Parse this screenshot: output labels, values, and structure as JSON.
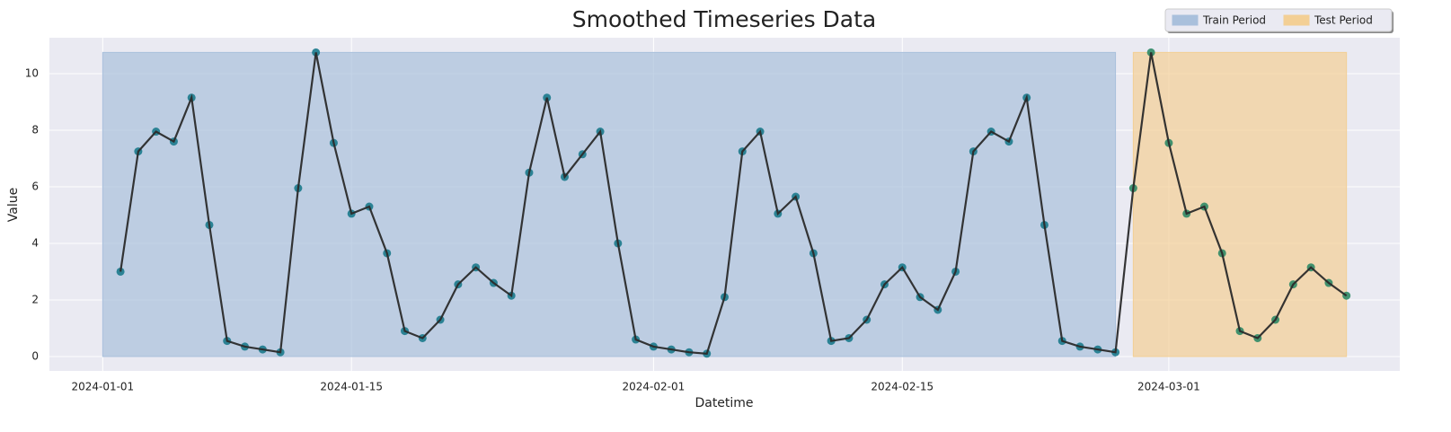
{
  "chart_data": {
    "type": "line",
    "title": "Smoothed Timeseries Data",
    "x_label": "Datetime",
    "y_label": "Value",
    "x": [
      "2024-01-02",
      "2024-01-03",
      "2024-01-04",
      "2024-01-05",
      "2024-01-06",
      "2024-01-07",
      "2024-01-08",
      "2024-01-09",
      "2024-01-10",
      "2024-01-11",
      "2024-01-12",
      "2024-01-13",
      "2024-01-14",
      "2024-01-15",
      "2024-01-16",
      "2024-01-17",
      "2024-01-18",
      "2024-01-19",
      "2024-01-20",
      "2024-01-21",
      "2024-01-22",
      "2024-01-23",
      "2024-01-24",
      "2024-01-25",
      "2024-01-26",
      "2024-01-27",
      "2024-01-28",
      "2024-01-29",
      "2024-01-30",
      "2024-01-31",
      "2024-02-01",
      "2024-02-02",
      "2024-02-03",
      "2024-02-04",
      "2024-02-05",
      "2024-02-06",
      "2024-02-07",
      "2024-02-08",
      "2024-02-09",
      "2024-02-10",
      "2024-02-11",
      "2024-02-12",
      "2024-02-13",
      "2024-02-14",
      "2024-02-15",
      "2024-02-16",
      "2024-02-17",
      "2024-02-18",
      "2024-02-19",
      "2024-02-20",
      "2024-02-21",
      "2024-02-22",
      "2024-02-23",
      "2024-02-24",
      "2024-02-25",
      "2024-02-26",
      "2024-02-27",
      "2024-02-28",
      "2024-02-29",
      "2024-03-01",
      "2024-03-02",
      "2024-03-03",
      "2024-03-04",
      "2024-03-05",
      "2024-03-06",
      "2024-03-07",
      "2024-03-08",
      "2024-03-09",
      "2024-03-10",
      "2024-03-11"
    ],
    "values": [
      3.0,
      7.25,
      7.95,
      7.6,
      9.15,
      4.65,
      0.55,
      0.35,
      0.25,
      0.15,
      5.95,
      10.75,
      7.55,
      5.05,
      5.3,
      3.65,
      0.9,
      0.65,
      1.3,
      2.55,
      3.15,
      2.6,
      2.15,
      6.5,
      9.15,
      6.35,
      7.15,
      7.95,
      4.0,
      0.6,
      0.35,
      0.25,
      0.15,
      0.1,
      2.1,
      7.25,
      7.95,
      5.05,
      5.65,
      3.65,
      0.55,
      0.65,
      1.3,
      2.55,
      3.15,
      2.1,
      1.65,
      3.0,
      7.25,
      7.95,
      7.6,
      9.15,
      4.65,
      0.55,
      0.35,
      0.25,
      0.15,
      5.95,
      10.75,
      7.55,
      5.05,
      5.3,
      3.65,
      0.9,
      0.65,
      1.3,
      2.55,
      3.15,
      2.6,
      2.15
    ],
    "line_color": "#2a2a2a",
    "spans": [
      {
        "name": "Train Period",
        "start": "2024-01-01",
        "end": "2024-02-27",
        "ymin": 0,
        "ymax": 10.75,
        "color": "#a9c0dc",
        "marker_color": "#1b7a8c"
      },
      {
        "name": "Test Period",
        "start": "2024-02-28",
        "end": "2024-03-11",
        "ymin": 0,
        "ymax": 10.75,
        "color": "#f3cf95",
        "marker_color": "#2f8a66"
      }
    ],
    "xlim": [
      "2023-12-29",
      "2024-03-14"
    ],
    "xticks": [
      "2024-01-01",
      "2024-01-15",
      "2024-02-01",
      "2024-02-15",
      "2024-03-01"
    ],
    "ylim": [
      -0.51,
      11.27
    ],
    "yticks": [
      0,
      2,
      4,
      6,
      8,
      10
    ],
    "grid": true,
    "legend": "upper right"
  }
}
